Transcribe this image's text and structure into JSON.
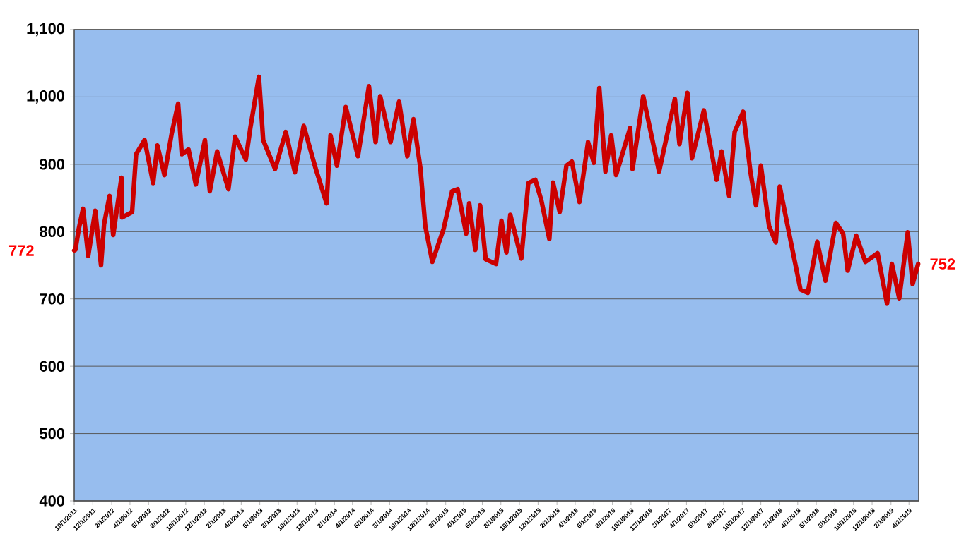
{
  "chart_data": {
    "type": "line",
    "color": "#cc0000",
    "grid": "y",
    "x": [
      "2011-10-01",
      "2011-10-05",
      "2011-10-16",
      "2011-10-30",
      "2011-11-16",
      "2011-12-09",
      "2011-12-28",
      "2012-01-07",
      "2012-01-25",
      "2012-02-06",
      "2012-03-04",
      "2012-03-06",
      "2012-04-08",
      "2012-04-21",
      "2012-05-19",
      "2012-06-16",
      "2012-06-30",
      "2012-07-23",
      "2012-08-16",
      "2012-09-06",
      "2012-09-18",
      "2012-10-10",
      "2012-11-03",
      "2012-12-03",
      "2012-12-19",
      "2013-01-12",
      "2013-02-18",
      "2013-03-12",
      "2013-04-16",
      "2013-05-01",
      "2013-05-29",
      "2013-06-12",
      "2013-07-21",
      "2013-08-25",
      "2013-09-24",
      "2013-10-23",
      "2013-12-01",
      "2014-01-06",
      "2014-01-19",
      "2014-02-09",
      "2014-03-10",
      "2014-04-19",
      "2014-05-25",
      "2014-06-16",
      "2014-07-01",
      "2014-08-04",
      "2014-09-01",
      "2014-09-28",
      "2014-10-18",
      "2014-11-10",
      "2014-11-26",
      "2014-12-19",
      "2015-01-25",
      "2015-02-22",
      "2015-03-12",
      "2015-04-09",
      "2015-04-19",
      "2015-05-09",
      "2015-05-25",
      "2015-06-12",
      "2015-07-16",
      "2015-08-03",
      "2015-08-19",
      "2015-09-01",
      "2015-10-07",
      "2015-10-30",
      "2015-11-22",
      "2015-12-12",
      "2016-01-07",
      "2016-01-19",
      "2016-02-10",
      "2016-03-03",
      "2016-03-21",
      "2016-04-15",
      "2016-05-13",
      "2016-06-01",
      "2016-06-19",
      "2016-07-09",
      "2016-07-28",
      "2016-08-13",
      "2016-09-28",
      "2016-10-06",
      "2016-11-10",
      "2017-01-01",
      "2017-02-22",
      "2017-03-09",
      "2017-04-04",
      "2017-04-19",
      "2017-05-28",
      "2017-07-09",
      "2017-07-25",
      "2017-08-19",
      "2017-09-06",
      "2017-10-04",
      "2017-10-28",
      "2017-11-15",
      "2017-12-01",
      "2017-12-28",
      "2018-01-19",
      "2018-02-01",
      "2018-02-27",
      "2018-04-10",
      "2018-05-04",
      "2018-06-04",
      "2018-07-01",
      "2018-08-04",
      "2018-08-28",
      "2018-09-12",
      "2018-10-10",
      "2018-11-09",
      "2018-12-19",
      "2019-01-19",
      "2019-02-04",
      "2019-02-28",
      "2019-03-28",
      "2019-04-13",
      "2019-05-01"
    ],
    "values": [
      772,
      773,
      804,
      834,
      764,
      831,
      750,
      811,
      853,
      795,
      880,
      821,
      829,
      915,
      936,
      872,
      928,
      884,
      946,
      990,
      915,
      922,
      870,
      936,
      860,
      919,
      863,
      941,
      907,
      954,
      1030,
      936,
      893,
      948,
      888,
      957,
      894,
      842,
      943,
      898,
      985,
      912,
      1016,
      933,
      1001,
      933,
      993,
      912,
      967,
      894,
      808,
      755,
      804,
      860,
      863,
      797,
      842,
      773,
      839,
      759,
      752,
      816,
      769,
      825,
      760,
      872,
      877,
      846,
      789,
      873,
      829,
      898,
      904,
      844,
      933,
      902,
      1013,
      889,
      943,
      884,
      954,
      893,
      1001,
      889,
      997,
      930,
      1006,
      909,
      980,
      877,
      919,
      853,
      948,
      978,
      888,
      839,
      898,
      808,
      784,
      867,
      808,
      714,
      709,
      785,
      727,
      813,
      797,
      742,
      794,
      755,
      768,
      693,
      752,
      701,
      799,
      722,
      752
    ],
    "xlim": [
      "2011-10-01",
      "2019-05-03"
    ],
    "ylim": [
      400,
      1100
    ],
    "yticks": [
      400,
      500,
      600,
      700,
      800,
      900,
      {
        "value": 1000,
        "label": "1,000"
      },
      {
        "value": 1100,
        "label": "1,100"
      }
    ],
    "xticks": [
      {
        "value": "2011-10-01",
        "label": "10/1/2011"
      },
      {
        "value": "2011-12-01",
        "label": "12/1/2011"
      },
      {
        "value": "2012-02-01",
        "label": "2/1/2012"
      },
      {
        "value": "2012-04-01",
        "label": "4/1/2012"
      },
      {
        "value": "2012-06-01",
        "label": "6/1/2012"
      },
      {
        "value": "2012-08-01",
        "label": "8/1/2012"
      },
      {
        "value": "2012-10-01",
        "label": "10/1/2012"
      },
      {
        "value": "2012-12-01",
        "label": "12/1/2012"
      },
      {
        "value": "2013-02-01",
        "label": "2/1/2013"
      },
      {
        "value": "2013-04-01",
        "label": "4/1/2013"
      },
      {
        "value": "2013-06-01",
        "label": "6/1/2013"
      },
      {
        "value": "2013-08-01",
        "label": "8/1/2013"
      },
      {
        "value": "2013-10-01",
        "label": "10/1/2013"
      },
      {
        "value": "2013-12-01",
        "label": "12/1/2013"
      },
      {
        "value": "2014-02-01",
        "label": "2/1/2014"
      },
      {
        "value": "2014-04-01",
        "label": "4/1/2014"
      },
      {
        "value": "2014-06-01",
        "label": "6/1/2014"
      },
      {
        "value": "2014-08-01",
        "label": "8/1/2014"
      },
      {
        "value": "2014-10-01",
        "label": "10/1/2014"
      },
      {
        "value": "2014-12-01",
        "label": "12/1/2014"
      },
      {
        "value": "2015-02-01",
        "label": "2/1/2015"
      },
      {
        "value": "2015-04-01",
        "label": "4/1/2015"
      },
      {
        "value": "2015-06-01",
        "label": "6/1/2015"
      },
      {
        "value": "2015-08-01",
        "label": "8/1/2015"
      },
      {
        "value": "2015-10-01",
        "label": "10/1/2015"
      },
      {
        "value": "2015-12-01",
        "label": "12/1/2015"
      },
      {
        "value": "2016-02-01",
        "label": "2/1/2016"
      },
      {
        "value": "2016-04-01",
        "label": "4/1/2016"
      },
      {
        "value": "2016-06-01",
        "label": "6/1/2016"
      },
      {
        "value": "2016-08-01",
        "label": "8/1/2016"
      },
      {
        "value": "2016-10-01",
        "label": "10/1/2016"
      },
      {
        "value": "2016-12-01",
        "label": "12/1/2016"
      },
      {
        "value": "2017-02-01",
        "label": "2/1/2017"
      },
      {
        "value": "2017-04-01",
        "label": "4/1/2017"
      },
      {
        "value": "2017-06-01",
        "label": "6/1/2017"
      },
      {
        "value": "2017-08-01",
        "label": "8/1/2017"
      },
      {
        "value": "2017-10-01",
        "label": "10/1/2017"
      },
      {
        "value": "2017-12-01",
        "label": "12/1/2017"
      },
      {
        "value": "2018-02-01",
        "label": "2/1/2018"
      },
      {
        "value": "2018-04-01",
        "label": "4/1/2018"
      },
      {
        "value": "2018-06-01",
        "label": "6/1/2018"
      },
      {
        "value": "2018-08-01",
        "label": "8/1/2018"
      },
      {
        "value": "2018-10-01",
        "label": "10/1/2018"
      },
      {
        "value": "2018-12-01",
        "label": "12/1/2018"
      },
      {
        "value": "2019-02-01",
        "label": "2/1/2019"
      },
      {
        "value": "2019-04-01",
        "label": "4/1/2019"
      }
    ],
    "annotations": [
      {
        "text": "772",
        "x": "2011-10-01",
        "y": 772
      },
      {
        "text": "752",
        "x": "2019-05-01",
        "y": 752
      }
    ]
  }
}
